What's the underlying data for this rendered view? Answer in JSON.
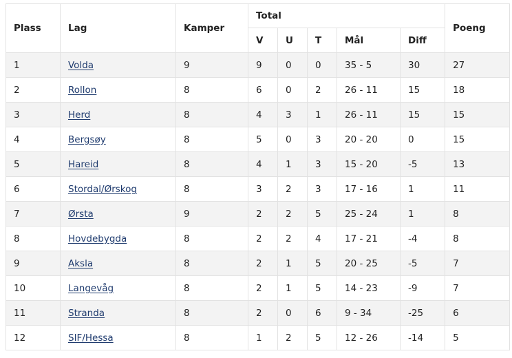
{
  "headers": {
    "plass": "Plass",
    "lag": "Lag",
    "kamper": "Kamper",
    "total": "Total",
    "v": "V",
    "u": "U",
    "t": "T",
    "mal": "Mål",
    "diff": "Diff",
    "poeng": "Poeng"
  },
  "rows": [
    {
      "plass": "1",
      "lag": "Volda",
      "kamper": "9",
      "v": "9",
      "u": "0",
      "t": "0",
      "mal": "35 - 5",
      "diff": "30",
      "poeng": "27"
    },
    {
      "plass": "2",
      "lag": "Rollon",
      "kamper": "8",
      "v": "6",
      "u": "0",
      "t": "2",
      "mal": "26 - 11",
      "diff": "15",
      "poeng": "18"
    },
    {
      "plass": "3",
      "lag": "Herd",
      "kamper": "8",
      "v": "4",
      "u": "3",
      "t": "1",
      "mal": "26 - 11",
      "diff": "15",
      "poeng": "15"
    },
    {
      "plass": "4",
      "lag": "Bergsøy",
      "kamper": "8",
      "v": "5",
      "u": "0",
      "t": "3",
      "mal": "20 - 20",
      "diff": "0",
      "poeng": "15"
    },
    {
      "plass": "5",
      "lag": "Hareid",
      "kamper": "8",
      "v": "4",
      "u": "1",
      "t": "3",
      "mal": "15 - 20",
      "diff": "-5",
      "poeng": "13"
    },
    {
      "plass": "6",
      "lag": "Stordal/Ørskog",
      "kamper": "8",
      "v": "3",
      "u": "2",
      "t": "3",
      "mal": "17 - 16",
      "diff": "1",
      "poeng": "11"
    },
    {
      "plass": "7",
      "lag": "Ørsta",
      "kamper": "9",
      "v": "2",
      "u": "2",
      "t": "5",
      "mal": "25 - 24",
      "diff": "1",
      "poeng": "8"
    },
    {
      "plass": "8",
      "lag": "Hovdebygda",
      "kamper": "8",
      "v": "2",
      "u": "2",
      "t": "4",
      "mal": "17 - 21",
      "diff": "-4",
      "poeng": "8"
    },
    {
      "plass": "9",
      "lag": "Aksla",
      "kamper": "8",
      "v": "2",
      "u": "1",
      "t": "5",
      "mal": "20 - 25",
      "diff": "-5",
      "poeng": "7"
    },
    {
      "plass": "10",
      "lag": "Langevåg",
      "kamper": "8",
      "v": "2",
      "u": "1",
      "t": "5",
      "mal": "14 - 23",
      "diff": "-9",
      "poeng": "7"
    },
    {
      "plass": "11",
      "lag": "Stranda",
      "kamper": "8",
      "v": "2",
      "u": "0",
      "t": "6",
      "mal": "9 - 34",
      "diff": "-25",
      "poeng": "6"
    },
    {
      "plass": "12",
      "lag": "SIF/Hessa",
      "kamper": "8",
      "v": "1",
      "u": "2",
      "t": "5",
      "mal": "12 - 26",
      "diff": "-14",
      "poeng": "5"
    }
  ]
}
